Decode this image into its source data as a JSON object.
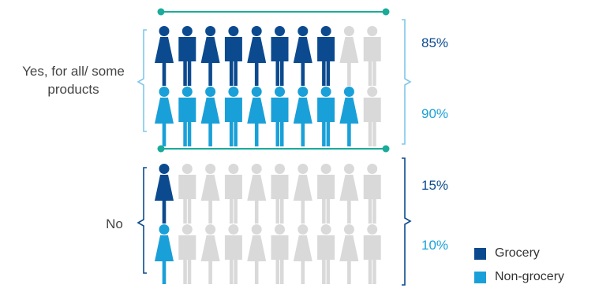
{
  "colors": {
    "grocery": "#0b4a8f",
    "non_grocery": "#1aa0d8",
    "empty": "#d9d9d9",
    "accent": "#1aab9b",
    "bracket_yes": "#7fc8ea",
    "bracket_no": "#0b4a8f"
  },
  "icons_per_row": 10,
  "chart_data": {
    "type": "pictograph",
    "categories": [
      "Yes, for all/ some products",
      "No"
    ],
    "series": [
      {
        "name": "Grocery",
        "values": [
          85,
          15
        ]
      },
      {
        "name": "Non-grocery",
        "values": [
          90,
          10
        ]
      }
    ],
    "unit": "%",
    "icon": "person-icon (alternating female and male)"
  },
  "labels": {
    "yes": "Yes, for all/ some products",
    "no": "No",
    "yes_grocery_pct": "85%",
    "yes_nongrocery_pct": "90%",
    "no_grocery_pct": "15%",
    "no_nongrocery_pct": "10%"
  },
  "legend": {
    "grocery": "Grocery",
    "non_grocery": "Non-grocery"
  }
}
